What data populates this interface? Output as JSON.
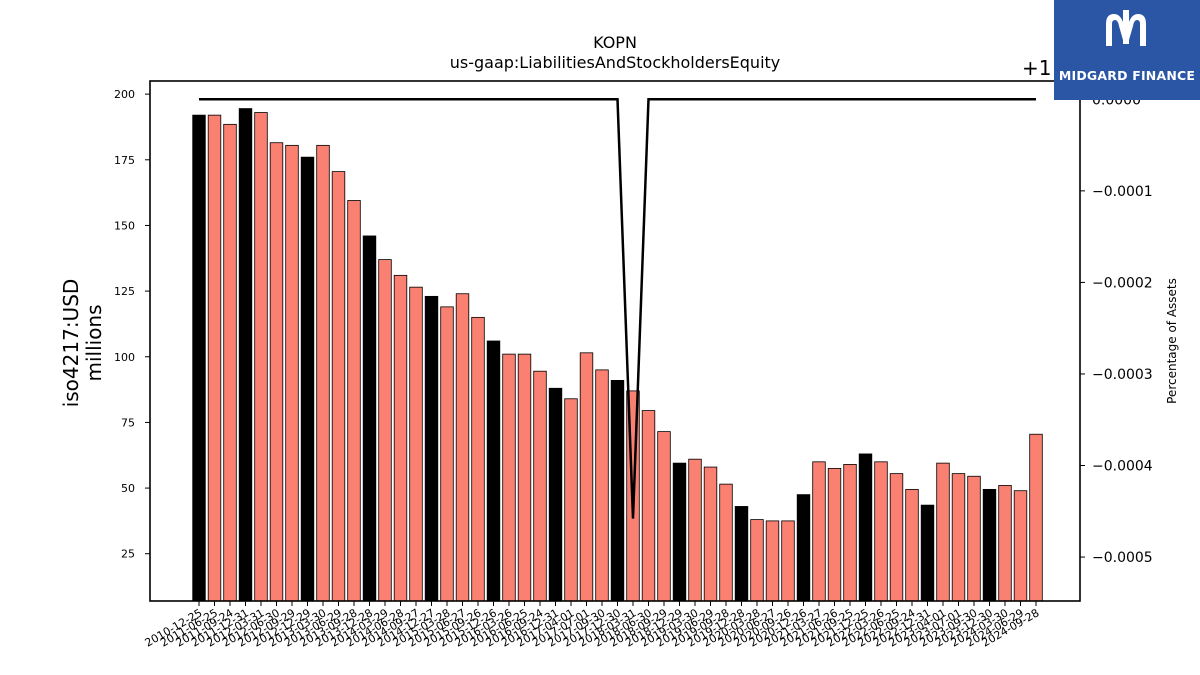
{
  "brand": {
    "name": "MIDGARD FINANCE",
    "box_color": "#2b56a6"
  },
  "chart_data": {
    "type": "bar",
    "title": "KOPN",
    "subtitle": "us-gaap:LiabilitiesAndStockholdersEquity",
    "ylabel": "iso4217:USD",
    "ylabel2": "millions",
    "y2label": "Percentage of Assets",
    "y2_offset_text": "+1",
    "ylim": [
      7,
      205
    ],
    "y2lim": [
      -0.000548,
      2e-05
    ],
    "yticks": [
      25,
      50,
      75,
      100,
      125,
      150,
      175,
      200
    ],
    "y2ticks": [
      {
        "value": 0,
        "label": "0.0000"
      },
      {
        "value": -0.0001,
        "label": "−0.0001"
      },
      {
        "value": -0.0002,
        "label": "−0.0002"
      },
      {
        "value": -0.0003,
        "label": "−0.0003"
      },
      {
        "value": -0.0004,
        "label": "−0.0004"
      },
      {
        "value": -0.0005,
        "label": "−0.0005"
      }
    ],
    "colors": {
      "annual": "#000000",
      "quarterly": "#fa8072",
      "line": "#000000"
    },
    "categories": [
      "2010-12-25",
      "2011-06-25",
      "2011-09-24",
      "2011-12-31",
      "2012-03-31",
      "2012-06-30",
      "2012-09-29",
      "2012-12-29",
      "2013-03-30",
      "2013-06-29",
      "2013-09-28",
      "2013-12-28",
      "2014-03-29",
      "2014-06-28",
      "2014-09-27",
      "2014-12-27",
      "2015-03-28",
      "2015-06-27",
      "2015-09-26",
      "2015-12-26",
      "2016-03-26",
      "2016-06-25",
      "2016-09-24",
      "2016-12-31",
      "2017-04-01",
      "2017-07-01",
      "2017-09-30",
      "2017-12-30",
      "2018-03-31",
      "2018-06-30",
      "2018-09-29",
      "2018-12-29",
      "2019-03-30",
      "2019-06-29",
      "2019-09-28",
      "2019-12-28",
      "2020-03-28",
      "2020-06-27",
      "2020-09-26",
      "2020-12-26",
      "2021-03-27",
      "2021-06-26",
      "2021-09-25",
      "2021-12-25",
      "2022-03-26",
      "2022-06-25",
      "2022-09-24",
      "2022-12-31",
      "2023-04-01",
      "2023-07-01",
      "2023-09-30",
      "2023-12-30",
      "2024-03-30",
      "2024-06-29",
      "2024-09-28"
    ],
    "values": [
      192,
      192,
      188.5,
      194.5,
      193,
      181.5,
      180.5,
      176,
      180.5,
      170.5,
      159.5,
      146,
      137,
      131,
      126.5,
      123,
      119,
      124,
      115,
      106,
      101,
      101,
      94.5,
      88,
      84,
      101.5,
      95,
      91,
      87,
      79.5,
      71.5,
      59.5,
      61,
      58,
      51.5,
      43,
      38,
      37.5,
      37.5,
      47.5,
      60,
      57.5,
      59,
      63,
      60,
      55.5,
      49.5,
      43.5,
      59.5,
      55.5,
      54.5,
      49.5,
      51,
      49,
      70.5
    ],
    "kinds": [
      "annual",
      "quarterly",
      "quarterly",
      "annual",
      "quarterly",
      "quarterly",
      "quarterly",
      "annual",
      "quarterly",
      "quarterly",
      "quarterly",
      "annual",
      "quarterly",
      "quarterly",
      "quarterly",
      "annual",
      "quarterly",
      "quarterly",
      "quarterly",
      "annual",
      "quarterly",
      "quarterly",
      "quarterly",
      "annual",
      "quarterly",
      "quarterly",
      "quarterly",
      "annual",
      "quarterly",
      "quarterly",
      "quarterly",
      "annual",
      "quarterly",
      "quarterly",
      "quarterly",
      "annual",
      "quarterly",
      "quarterly",
      "quarterly",
      "annual",
      "quarterly",
      "quarterly",
      "quarterly",
      "annual",
      "quarterly",
      "quarterly",
      "quarterly",
      "annual",
      "quarterly",
      "quarterly",
      "quarterly",
      "annual",
      "quarterly",
      "quarterly",
      "quarterly"
    ],
    "line_values": [
      0,
      0,
      0,
      0,
      0,
      0,
      0,
      0,
      0,
      0,
      0,
      0,
      0,
      0,
      0,
      0,
      0,
      0,
      0,
      0,
      0,
      0,
      0,
      0,
      0,
      0,
      0,
      0,
      -0.000458,
      0,
      0,
      0,
      0,
      0,
      0,
      0,
      0,
      0,
      0,
      0,
      0,
      0,
      0,
      0,
      0,
      0,
      0,
      0,
      0,
      0,
      0,
      0,
      0,
      0,
      0
    ]
  }
}
